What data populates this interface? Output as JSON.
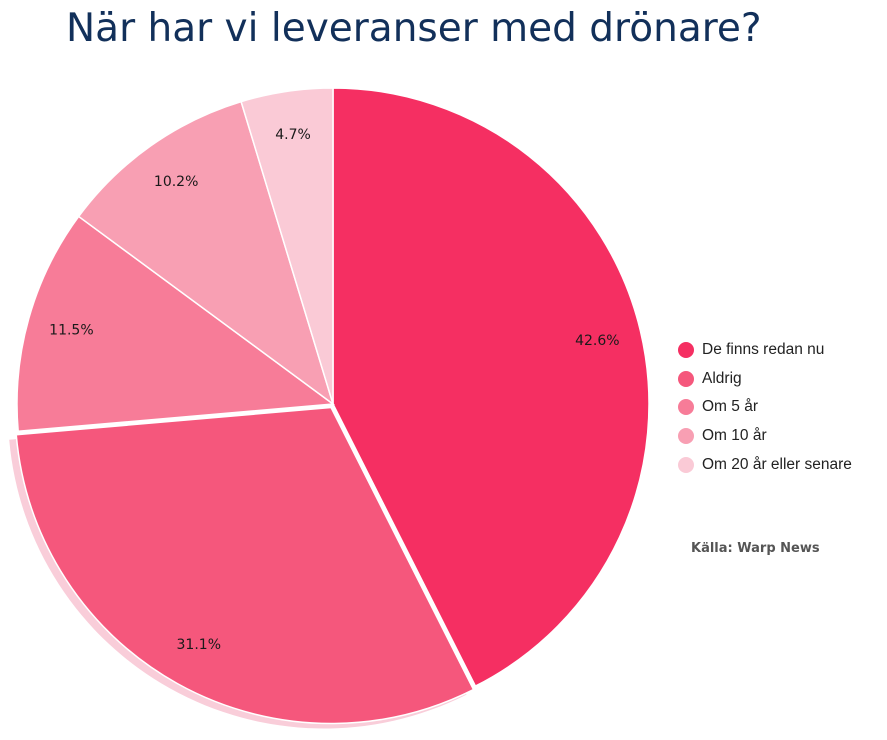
{
  "chart_data": {
    "type": "pie",
    "title": "När har vi leveranser med drönare?",
    "categories": [
      "De finns redan nu",
      "Aldrig",
      "Om 5 år",
      "Om 10 år",
      "Om 20 år eller senare"
    ],
    "values": [
      42.6,
      31.1,
      11.5,
      10.2,
      4.7
    ],
    "labels": [
      "42.6%",
      "31.1%",
      "11.5%",
      "10.2%",
      "4.7%"
    ],
    "colors": [
      "#f52f62",
      "#f5577c",
      "#f77c98",
      "#f89fb3",
      "#facad6"
    ],
    "exploded_index": 1,
    "legend_position": "right",
    "source": "Källa: Warp News"
  }
}
